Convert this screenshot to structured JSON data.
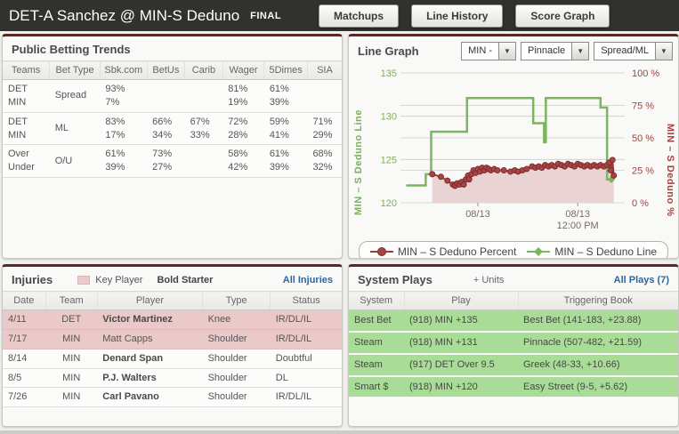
{
  "header": {
    "title": "DET-A Sanchez @ MIN-S Deduno",
    "status": "FINAL",
    "buttons": [
      "Matchups",
      "Line History",
      "Score Graph"
    ]
  },
  "betting": {
    "title": "Public Betting Trends",
    "columns": [
      "Teams",
      "Bet Type",
      "Sbk.com",
      "BetUs",
      "Carib",
      "Wager",
      "5Dimes",
      "SIA"
    ],
    "rows": [
      {
        "teams": [
          "DET",
          "MIN"
        ],
        "bet_type": "Spread",
        "values": [
          [
            "93%",
            "7%"
          ],
          [
            "",
            ""
          ],
          [
            "",
            ""
          ],
          [
            "81%",
            "19%"
          ],
          [
            "61%",
            "39%"
          ],
          [
            "",
            ""
          ]
        ]
      },
      {
        "teams": [
          "DET",
          "MIN"
        ],
        "bet_type": "ML",
        "values": [
          [
            "83%",
            "17%"
          ],
          [
            "66%",
            "34%"
          ],
          [
            "67%",
            "33%"
          ],
          [
            "72%",
            "28%"
          ],
          [
            "59%",
            "41%"
          ],
          [
            "71%",
            "29%"
          ]
        ]
      },
      {
        "teams": [
          "Over",
          "Under"
        ],
        "bet_type": "O/U",
        "values": [
          [
            "61%",
            "39%"
          ],
          [
            "73%",
            "27%"
          ],
          [
            "",
            ""
          ],
          [
            "58%",
            "42%"
          ],
          [
            "61%",
            "39%"
          ],
          [
            "68%",
            "32%"
          ]
        ]
      }
    ]
  },
  "line_graph": {
    "title": "Line Graph",
    "dropdowns": [
      "MIN -",
      "Pinnacle",
      "Spread/ML"
    ]
  },
  "chart_data": {
    "type": "line",
    "axis_left": {
      "label": "MIN – S Deduno Line",
      "min": 120,
      "max": 135,
      "ticks": [
        135,
        130,
        125,
        120
      ]
    },
    "axis_right": {
      "label": "MIN – S Deduno %",
      "min": 0,
      "max": 100,
      "ticks": [
        100,
        75,
        50,
        25,
        0
      ],
      "suffix": " %"
    },
    "x_ticks": [
      {
        "pos": 0.34,
        "lines": [
          "08/13"
        ]
      },
      {
        "pos": 0.8,
        "lines": [
          "08/13",
          "12:00 PM"
        ]
      }
    ],
    "series": [
      {
        "name": "MIN – S Deduno Percent",
        "axis": "right",
        "style": "line-markers",
        "color": "#9e3b3b",
        "marker_fill": "#a84444",
        "marker_stroke": "#7e2c2c",
        "area_fill": "#e9d3d3",
        "points": [
          [
            0.13,
            22
          ],
          [
            0.17,
            20
          ],
          [
            0.2,
            17
          ],
          [
            0.225,
            14
          ],
          [
            0.235,
            13
          ],
          [
            0.245,
            15
          ],
          [
            0.255,
            14
          ],
          [
            0.265,
            16
          ],
          [
            0.275,
            14
          ],
          [
            0.285,
            18
          ],
          [
            0.295,
            21
          ],
          [
            0.3,
            18
          ],
          [
            0.31,
            22
          ],
          [
            0.32,
            25
          ],
          [
            0.33,
            23
          ],
          [
            0.34,
            26
          ],
          [
            0.35,
            24
          ],
          [
            0.36,
            27
          ],
          [
            0.37,
            25
          ],
          [
            0.38,
            27
          ],
          [
            0.39,
            26
          ],
          [
            0.4,
            25
          ],
          [
            0.415,
            26
          ],
          [
            0.43,
            25
          ],
          [
            0.46,
            25
          ],
          [
            0.49,
            24
          ],
          [
            0.51,
            25
          ],
          [
            0.525,
            24
          ],
          [
            0.545,
            25
          ],
          [
            0.565,
            26
          ],
          [
            0.59,
            28
          ],
          [
            0.605,
            27
          ],
          [
            0.62,
            28
          ],
          [
            0.635,
            27
          ],
          [
            0.65,
            29
          ],
          [
            0.665,
            28
          ],
          [
            0.68,
            29
          ],
          [
            0.695,
            28
          ],
          [
            0.71,
            30
          ],
          [
            0.725,
            29
          ],
          [
            0.74,
            28
          ],
          [
            0.755,
            30
          ],
          [
            0.77,
            29
          ],
          [
            0.785,
            28
          ],
          [
            0.8,
            30
          ],
          [
            0.815,
            29
          ],
          [
            0.83,
            28
          ],
          [
            0.845,
            29
          ],
          [
            0.86,
            28
          ],
          [
            0.875,
            29
          ],
          [
            0.89,
            28
          ],
          [
            0.905,
            29
          ],
          [
            0.92,
            28
          ],
          [
            0.935,
            29
          ],
          [
            0.945,
            31
          ],
          [
            0.952,
            25
          ],
          [
            0.96,
            33
          ],
          [
            0.966,
            21
          ]
        ]
      },
      {
        "name": "MIN – S Deduno Line",
        "axis": "left",
        "style": "step",
        "color": "#7cb55f",
        "points": [
          [
            0.01,
            122
          ],
          [
            0.1,
            122
          ],
          [
            0.1,
            123.3
          ],
          [
            0.125,
            123.3
          ],
          [
            0.125,
            128.2
          ],
          [
            0.29,
            128.2
          ],
          [
            0.29,
            132.1
          ],
          [
            0.595,
            132.1
          ],
          [
            0.595,
            129.2
          ],
          [
            0.645,
            129.2
          ],
          [
            0.645,
            127.0
          ],
          [
            0.653,
            127.0
          ],
          [
            0.653,
            132.1
          ],
          [
            0.905,
            132.1
          ],
          [
            0.905,
            131.0
          ],
          [
            0.935,
            131.0
          ],
          [
            0.935,
            122.7
          ],
          [
            0.955,
            122.7
          ]
        ]
      }
    ],
    "legend_position": "bottom",
    "grid": true
  },
  "injuries": {
    "title": "Injuries",
    "key_label": "Key Player",
    "bold_label": "Bold Starter",
    "link": "All Injuries",
    "columns": [
      "Date",
      "Team",
      "Player",
      "Type",
      "Status"
    ],
    "rows": [
      {
        "date": "4/11",
        "team": "DET",
        "player": "Victor Martinez",
        "type": "Knee",
        "status": "IR/DL/IL",
        "bold": true,
        "key": true
      },
      {
        "date": "7/17",
        "team": "MIN",
        "player": "Matt Capps",
        "type": "Shoulder",
        "status": "IR/DL/IL",
        "bold": false,
        "key": true
      },
      {
        "date": "8/14",
        "team": "MIN",
        "player": "Denard Span",
        "type": "Shoulder",
        "status": "Doubtful",
        "bold": true,
        "key": false
      },
      {
        "date": "8/5",
        "team": "MIN",
        "player": "P.J. Walters",
        "type": "Shoulder",
        "status": "DL",
        "bold": true,
        "key": false
      },
      {
        "date": "7/26",
        "team": "MIN",
        "player": "Carl Pavano",
        "type": "Shoulder",
        "status": "IR/DL/IL",
        "bold": true,
        "key": false
      }
    ]
  },
  "system_plays": {
    "title": "System Plays",
    "units_label": "+ Units",
    "link": "All Plays (7)",
    "columns": [
      "System",
      "Play",
      "Triggering Book"
    ],
    "rows": [
      [
        "Best Bet",
        "(918) MIN +135",
        "Best Bet (141-183, +23.88)"
      ],
      [
        "Steam",
        "(918) MIN +131",
        "Pinnacle (507-482, +21.59)"
      ],
      [
        "Steam",
        "(917) DET Over 9.5",
        "Greek (48-33, +10.66)"
      ],
      [
        "Smart $",
        "(918) MIN +120",
        "Easy Street (9-5, +5.62)"
      ]
    ]
  },
  "colors": {
    "accent_maroon": "#5e2727",
    "line_green": "#7cb55f",
    "percent_red": "#a34343",
    "area_pink": "#e9d3d3",
    "key_row_pink": "#ecc9c9",
    "system_row_green": "#a9dd97",
    "link_blue": "#2b689c",
    "topbar_dark": "#31312d"
  }
}
